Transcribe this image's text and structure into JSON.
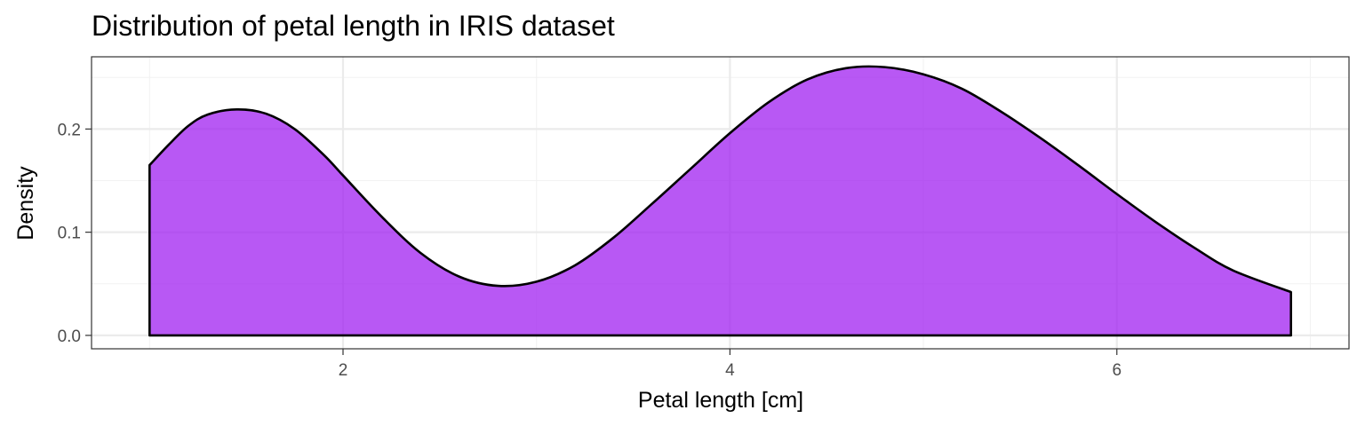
{
  "chart_data": {
    "type": "area",
    "title": "Distribution of petal length in IRIS dataset",
    "xlabel": "Petal length [cm]",
    "ylabel": "Density",
    "xlim": [
      0.7,
      7.2
    ],
    "ylim": [
      -0.013,
      0.27
    ],
    "x_ticks": [
      2,
      4,
      6
    ],
    "x_tick_labels": [
      "2",
      "4",
      "6"
    ],
    "y_ticks": [
      0.0,
      0.1,
      0.2
    ],
    "y_tick_labels": [
      "0.0",
      "0.1",
      "0.2"
    ],
    "x_minor_ticks": [
      1,
      3,
      5,
      7
    ],
    "y_minor_ticks": [
      0.05,
      0.15,
      0.25
    ],
    "grid": true,
    "legend": "none",
    "series": [
      {
        "x": [
          1.0,
          1.1,
          1.2,
          1.3,
          1.45,
          1.6,
          1.75,
          1.9,
          2.0,
          2.2,
          2.4,
          2.6,
          2.8,
          3.0,
          3.2,
          3.4,
          3.6,
          3.8,
          4.0,
          4.2,
          4.4,
          4.6,
          4.8,
          5.0,
          5.2,
          5.4,
          5.6,
          5.8,
          6.0,
          6.2,
          6.4,
          6.6,
          6.9
        ],
        "y": [
          0.165,
          0.185,
          0.203,
          0.214,
          0.219,
          0.215,
          0.2,
          0.175,
          0.155,
          0.115,
          0.08,
          0.057,
          0.048,
          0.052,
          0.068,
          0.095,
          0.128,
          0.162,
          0.196,
          0.226,
          0.248,
          0.259,
          0.26,
          0.253,
          0.239,
          0.217,
          0.192,
          0.165,
          0.137,
          0.11,
          0.085,
          0.063,
          0.042
        ]
      }
    ],
    "colors": {
      "fill": "#a020f0",
      "stroke": "#000000",
      "panel_border": "#333333",
      "grid_major": "#ebebeb",
      "grid_minor": "#f2f2f2",
      "tick_text": "#4d4d4d"
    }
  }
}
